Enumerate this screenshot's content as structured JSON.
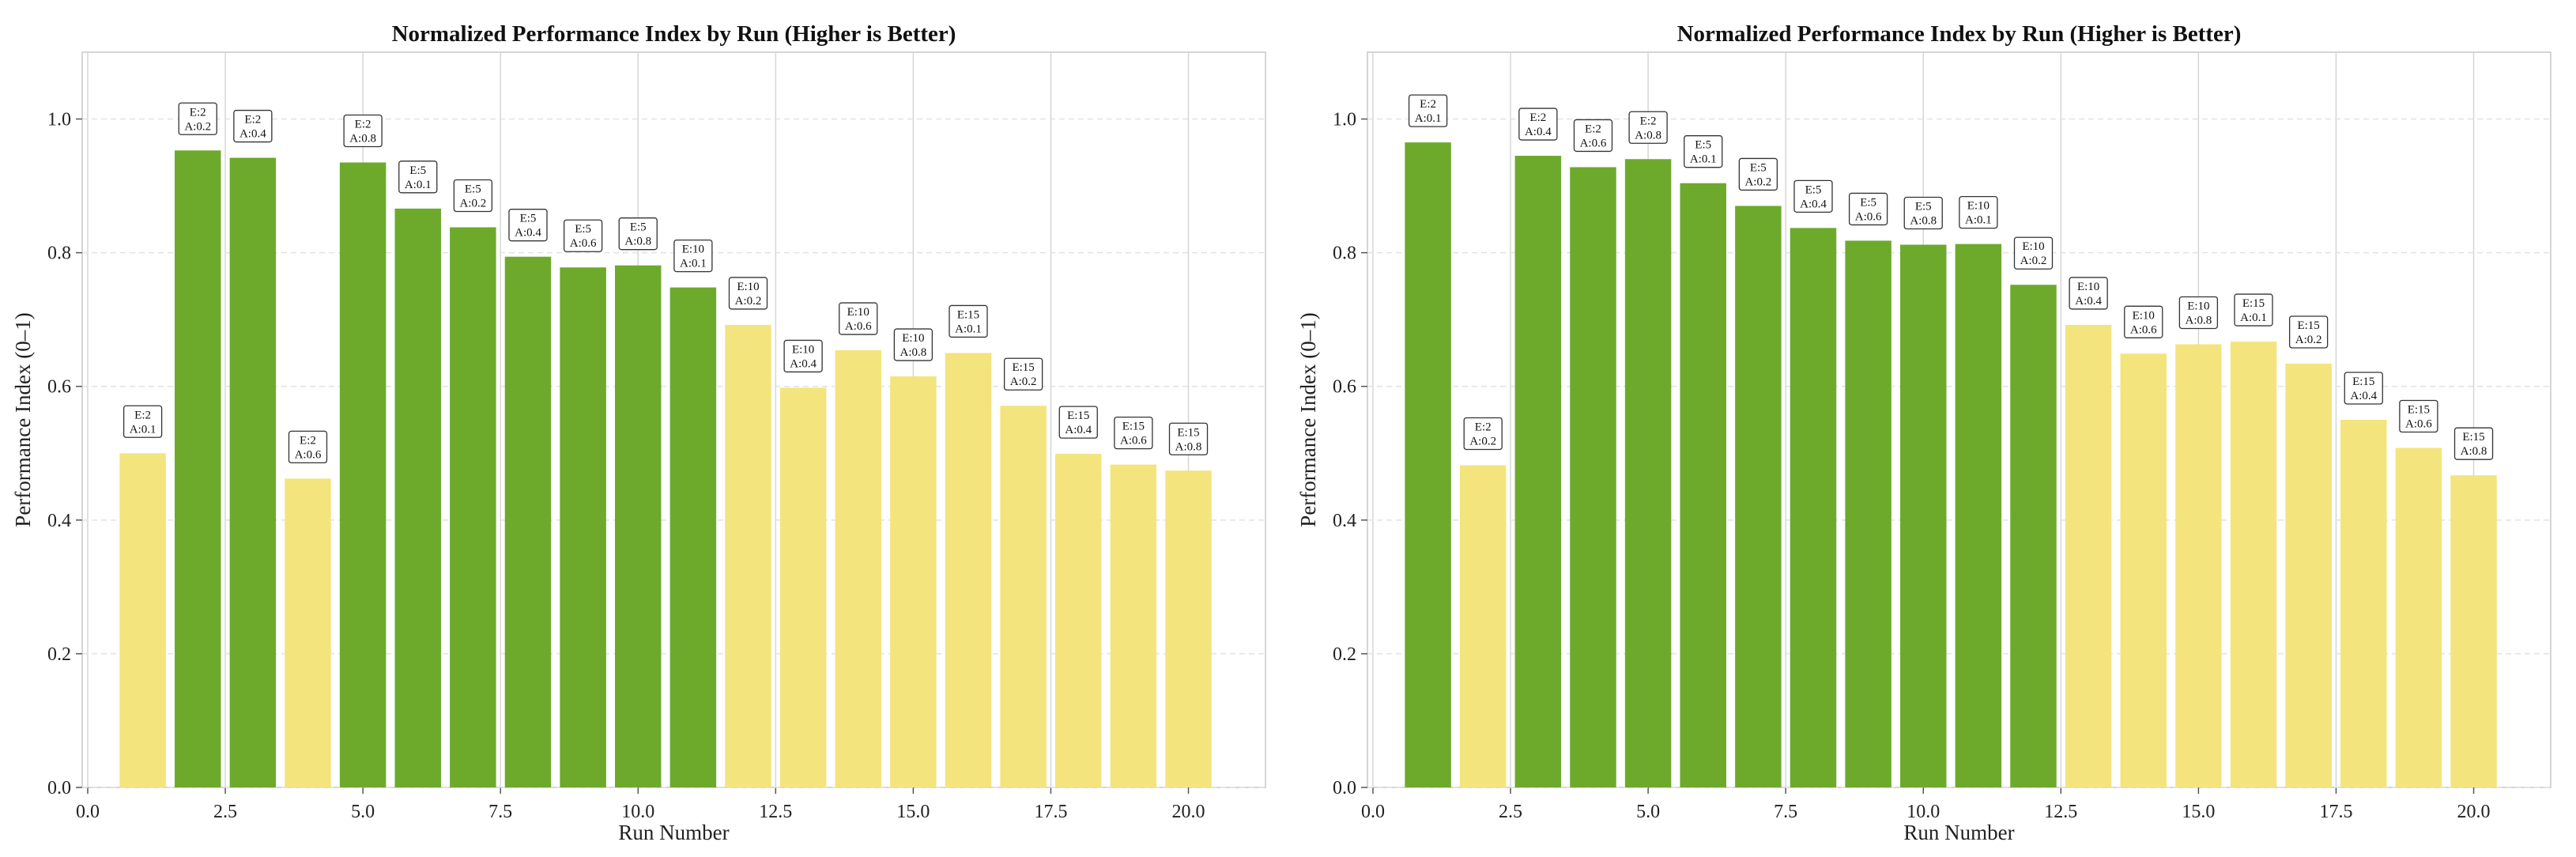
{
  "figure": {
    "green_color": "#6daa2c",
    "yellow_color": "#f4e47e",
    "label_border_color": "#333333"
  },
  "chart_data": [
    {
      "type": "bar",
      "title": "Normalized Performance Index by Run (Higher is Better)",
      "xlabel": "Run Number",
      "ylabel": "Performance Index (0–1)",
      "xlim": [
        -0.1,
        21.4
      ],
      "ylim": [
        0,
        1.1
      ],
      "xticks": [
        "0.0",
        "2.5",
        "5.0",
        "7.5",
        "10.0",
        "12.5",
        "15.0",
        "17.5",
        "20.0"
      ],
      "yticks": [
        "0.0",
        "0.2",
        "0.4",
        "0.6",
        "0.8",
        "1.0"
      ],
      "grid": true,
      "bars": [
        {
          "x": 1,
          "value": 0.5,
          "color_group": "yellow",
          "label_top": "E:2",
          "label_bottom": "A:0.1"
        },
        {
          "x": 2,
          "value": 0.953,
          "color_group": "green",
          "label_top": "E:2",
          "label_bottom": "A:0.2"
        },
        {
          "x": 3,
          "value": 0.942,
          "color_group": "green",
          "label_top": "E:2",
          "label_bottom": "A:0.4"
        },
        {
          "x": 4,
          "value": 0.462,
          "color_group": "yellow",
          "label_top": "E:2",
          "label_bottom": "A:0.6"
        },
        {
          "x": 5,
          "value": 0.935,
          "color_group": "green",
          "label_top": "E:2",
          "label_bottom": "A:0.8"
        },
        {
          "x": 6,
          "value": 0.866,
          "color_group": "green",
          "label_top": "E:5",
          "label_bottom": "A:0.1"
        },
        {
          "x": 7,
          "value": 0.838,
          "color_group": "green",
          "label_top": "E:5",
          "label_bottom": "A:0.2"
        },
        {
          "x": 8,
          "value": 0.794,
          "color_group": "green",
          "label_top": "E:5",
          "label_bottom": "A:0.4"
        },
        {
          "x": 9,
          "value": 0.778,
          "color_group": "green",
          "label_top": "E:5",
          "label_bottom": "A:0.6"
        },
        {
          "x": 10,
          "value": 0.781,
          "color_group": "green",
          "label_top": "E:5",
          "label_bottom": "A:0.8"
        },
        {
          "x": 11,
          "value": 0.748,
          "color_group": "green",
          "label_top": "E:10",
          "label_bottom": "A:0.1"
        },
        {
          "x": 12,
          "value": 0.692,
          "color_group": "yellow",
          "label_top": "E:10",
          "label_bottom": "A:0.2"
        },
        {
          "x": 13,
          "value": 0.598,
          "color_group": "yellow",
          "label_top": "E:10",
          "label_bottom": "A:0.4"
        },
        {
          "x": 14,
          "value": 0.654,
          "color_group": "yellow",
          "label_top": "E:10",
          "label_bottom": "A:0.6"
        },
        {
          "x": 15,
          "value": 0.615,
          "color_group": "yellow",
          "label_top": "E:10",
          "label_bottom": "A:0.8"
        },
        {
          "x": 16,
          "value": 0.65,
          "color_group": "yellow",
          "label_top": "E:15",
          "label_bottom": "A:0.1"
        },
        {
          "x": 17,
          "value": 0.571,
          "color_group": "yellow",
          "label_top": "E:15",
          "label_bottom": "A:0.2"
        },
        {
          "x": 18,
          "value": 0.499,
          "color_group": "yellow",
          "label_top": "E:15",
          "label_bottom": "A:0.4"
        },
        {
          "x": 19,
          "value": 0.483,
          "color_group": "yellow",
          "label_top": "E:15",
          "label_bottom": "A:0.6"
        },
        {
          "x": 20,
          "value": 0.474,
          "color_group": "yellow",
          "label_top": "E:15",
          "label_bottom": "A:0.8"
        }
      ]
    },
    {
      "type": "bar",
      "title": "Normalized Performance Index by Run (Higher is Better)",
      "xlabel": "Run Number",
      "ylabel": "Performance Index (0–1)",
      "xlim": [
        -0.1,
        21.4
      ],
      "ylim": [
        0,
        1.1
      ],
      "xticks": [
        "0.0",
        "2.5",
        "5.0",
        "7.5",
        "10.0",
        "12.5",
        "15.0",
        "17.5",
        "20.0"
      ],
      "yticks": [
        "0.0",
        "0.2",
        "0.4",
        "0.6",
        "0.8",
        "1.0"
      ],
      "grid": true,
      "bars": [
        {
          "x": 1,
          "value": 0.965,
          "color_group": "green",
          "label_top": "E:2",
          "label_bottom": "A:0.1"
        },
        {
          "x": 2,
          "value": 0.482,
          "color_group": "yellow",
          "label_top": "E:2",
          "label_bottom": "A:0.2"
        },
        {
          "x": 3,
          "value": 0.945,
          "color_group": "green",
          "label_top": "E:2",
          "label_bottom": "A:0.4"
        },
        {
          "x": 4,
          "value": 0.928,
          "color_group": "green",
          "label_top": "E:2",
          "label_bottom": "A:0.6"
        },
        {
          "x": 5,
          "value": 0.94,
          "color_group": "green",
          "label_top": "E:2",
          "label_bottom": "A:0.8"
        },
        {
          "x": 6,
          "value": 0.904,
          "color_group": "green",
          "label_top": "E:5",
          "label_bottom": "A:0.1"
        },
        {
          "x": 7,
          "value": 0.87,
          "color_group": "green",
          "label_top": "E:5",
          "label_bottom": "A:0.2"
        },
        {
          "x": 8,
          "value": 0.837,
          "color_group": "green",
          "label_top": "E:5",
          "label_bottom": "A:0.4"
        },
        {
          "x": 9,
          "value": 0.818,
          "color_group": "green",
          "label_top": "E:5",
          "label_bottom": "A:0.6"
        },
        {
          "x": 10,
          "value": 0.812,
          "color_group": "green",
          "label_top": "E:5",
          "label_bottom": "A:0.8"
        },
        {
          "x": 11,
          "value": 0.813,
          "color_group": "green",
          "label_top": "E:10",
          "label_bottom": "A:0.1"
        },
        {
          "x": 12,
          "value": 0.752,
          "color_group": "green",
          "label_top": "E:10",
          "label_bottom": "A:0.2"
        },
        {
          "x": 13,
          "value": 0.692,
          "color_group": "yellow",
          "label_top": "E:10",
          "label_bottom": "A:0.4"
        },
        {
          "x": 14,
          "value": 0.649,
          "color_group": "yellow",
          "label_top": "E:10",
          "label_bottom": "A:0.6"
        },
        {
          "x": 15,
          "value": 0.663,
          "color_group": "yellow",
          "label_top": "E:10",
          "label_bottom": "A:0.8"
        },
        {
          "x": 16,
          "value": 0.667,
          "color_group": "yellow",
          "label_top": "E:15",
          "label_bottom": "A:0.1"
        },
        {
          "x": 17,
          "value": 0.634,
          "color_group": "yellow",
          "label_top": "E:15",
          "label_bottom": "A:0.2"
        },
        {
          "x": 18,
          "value": 0.55,
          "color_group": "yellow",
          "label_top": "E:15",
          "label_bottom": "A:0.4"
        },
        {
          "x": 19,
          "value": 0.508,
          "color_group": "yellow",
          "label_top": "E:15",
          "label_bottom": "A:0.6"
        },
        {
          "x": 20,
          "value": 0.467,
          "color_group": "yellow",
          "label_top": "E:15",
          "label_bottom": "A:0.8"
        }
      ]
    }
  ]
}
